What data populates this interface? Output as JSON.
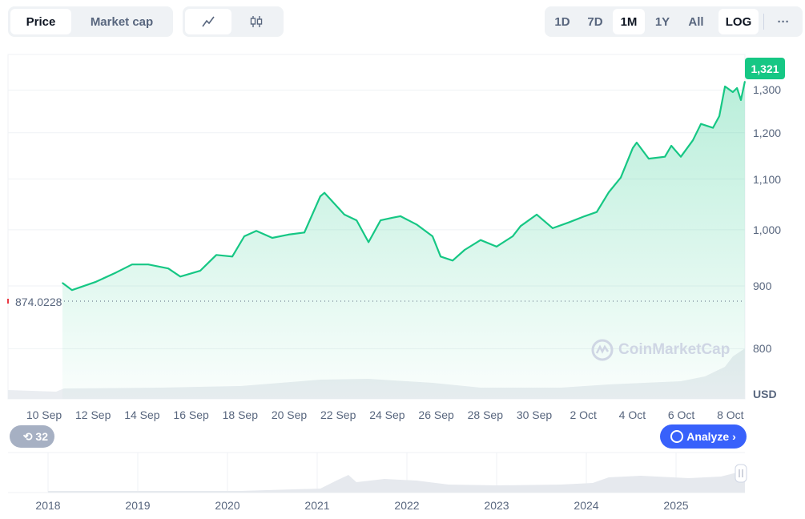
{
  "toolbar": {
    "tabs": [
      {
        "label": "Price",
        "active": true
      },
      {
        "label": "Market cap",
        "active": false
      }
    ],
    "chart_type_icons": [
      "line-chart-icon",
      "candlestick-icon"
    ],
    "ranges": [
      {
        "label": "1D"
      },
      {
        "label": "7D"
      },
      {
        "label": "1M",
        "active": true
      },
      {
        "label": "1Y"
      },
      {
        "label": "All"
      }
    ],
    "log_label": "LOG",
    "more_label": "···"
  },
  "chart_data": {
    "type": "line",
    "scale": "log",
    "currency_label": "USD",
    "current_price_badge": "1,321",
    "start_price_label": "874.0228",
    "y_ticks": [
      {
        "v": 800,
        "l": "800"
      },
      {
        "v": 900,
        "l": "900"
      },
      {
        "v": 1000,
        "l": "1,000"
      },
      {
        "v": 1100,
        "l": "1,100"
      },
      {
        "v": 1200,
        "l": "1,200"
      },
      {
        "v": 1300,
        "l": "1,300"
      }
    ],
    "ylim": [
      760,
      1380
    ],
    "x_ticks": [
      "10 Sep",
      "12 Sep",
      "14 Sep",
      "16 Sep",
      "18 Sep",
      "20 Sep",
      "22 Sep",
      "24 Sep",
      "26 Sep",
      "28 Sep",
      "30 Sep",
      "2 Oct",
      "4 Oct",
      "6 Oct",
      "8 Oct"
    ],
    "x_unit": "days since 10 Sep",
    "points": [
      [
        0.75,
        905
      ],
      [
        1.14,
        893
      ],
      [
        2.12,
        907
      ],
      [
        2.94,
        923
      ],
      [
        3.59,
        937
      ],
      [
        4.25,
        937
      ],
      [
        5.07,
        930
      ],
      [
        5.56,
        916
      ],
      [
        6.37,
        926
      ],
      [
        7.03,
        954
      ],
      [
        7.68,
        951
      ],
      [
        8.17,
        988
      ],
      [
        8.66,
        998
      ],
      [
        9.31,
        985
      ],
      [
        9.97,
        991
      ],
      [
        10.62,
        995
      ],
      [
        11.27,
        1065
      ],
      [
        11.44,
        1072
      ],
      [
        12.25,
        1029
      ],
      [
        12.75,
        1018
      ],
      [
        13.24,
        977
      ],
      [
        13.73,
        1018
      ],
      [
        14.22,
        1023
      ],
      [
        14.54,
        1026
      ],
      [
        15.2,
        1010
      ],
      [
        15.85,
        988
      ],
      [
        16.18,
        951
      ],
      [
        16.67,
        944
      ],
      [
        17.16,
        963
      ],
      [
        17.81,
        981
      ],
      [
        18.46,
        969
      ],
      [
        19.12,
        988
      ],
      [
        19.44,
        1007
      ],
      [
        20.1,
        1029
      ],
      [
        20.75,
        1003
      ],
      [
        21.41,
        1014
      ],
      [
        22.06,
        1026
      ],
      [
        22.55,
        1034
      ],
      [
        23.04,
        1073
      ],
      [
        23.53,
        1103
      ],
      [
        24.02,
        1166
      ],
      [
        24.18,
        1178
      ],
      [
        24.67,
        1143
      ],
      [
        25.33,
        1147
      ],
      [
        25.59,
        1171
      ],
      [
        25.98,
        1147
      ],
      [
        26.47,
        1183
      ],
      [
        26.8,
        1220
      ],
      [
        27.29,
        1211
      ],
      [
        27.55,
        1238
      ],
      [
        27.78,
        1309
      ],
      [
        28.1,
        1295
      ],
      [
        28.27,
        1305
      ],
      [
        28.43,
        1276
      ],
      [
        28.59,
        1321
      ]
    ],
    "line_color": "#16c784"
  },
  "watermark": "CoinMarketCap",
  "history_badge": "32",
  "analyze_label": "Analyze",
  "navigator": {
    "years": [
      "2018",
      "2019",
      "2020",
      "2021",
      "2022",
      "2023",
      "2024",
      "2025"
    ]
  }
}
